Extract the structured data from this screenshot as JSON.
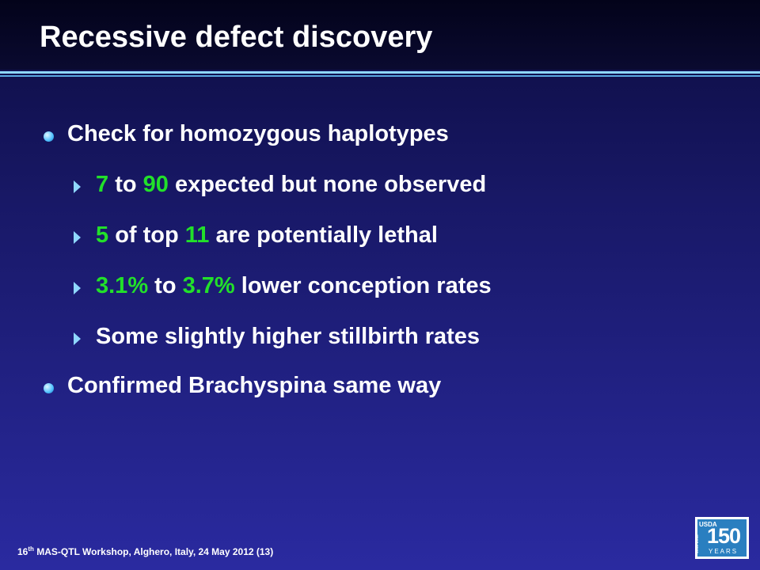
{
  "header": {
    "title": "Recessive defect discovery"
  },
  "bullets": [
    {
      "text": "Check for homozygous haplotypes",
      "sub": [
        [
          "7",
          " to ",
          "90",
          " expected but none observed"
        ],
        [
          "5",
          " of top ",
          "11",
          " are potentially lethal"
        ],
        [
          "3.1%",
          " to ",
          "3.7%",
          " lower conception rates"
        ],
        [
          "Some slightly higher stillbirth rates"
        ]
      ]
    },
    {
      "text": "Confirmed Brachyspina same way"
    }
  ],
  "footer": {
    "number": "16",
    "suffix": "th",
    "text": "MAS-QTL Workshop, Alghero, Italy, 24 May 2012 (13)"
  },
  "logo": {
    "agency": "USDA",
    "years": "1862-2012",
    "number": "150",
    "word": "YEARS"
  }
}
